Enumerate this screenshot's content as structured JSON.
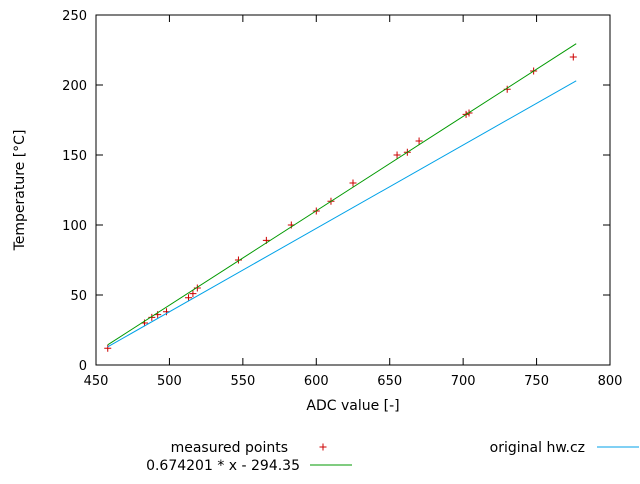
{
  "figure": {
    "background": "#ffffff",
    "axis_color": "#000000"
  },
  "chart_data": {
    "type": "scatter",
    "title": "",
    "xlabel": "ADC value [-]",
    "ylabel": "Temperature [°C]",
    "xlim": [
      450,
      800
    ],
    "ylim": [
      0,
      250
    ],
    "xticks": [
      450,
      500,
      550,
      600,
      650,
      700,
      750,
      800
    ],
    "yticks": [
      0,
      50,
      100,
      150,
      200,
      250
    ],
    "grid": false,
    "legend_position": "below-plot",
    "fit": {
      "slope": 0.674201,
      "intercept": -294.35,
      "equation": "0.674201 * x - 294.35"
    },
    "series": [
      {
        "name": "measured points",
        "type": "points",
        "marker": "plus",
        "color": "#cc0000",
        "points": [
          [
            458,
            12
          ],
          [
            483,
            30
          ],
          [
            488,
            34
          ],
          [
            492,
            36
          ],
          [
            498,
            38
          ],
          [
            513,
            48
          ],
          [
            516,
            51
          ],
          [
            519,
            55
          ],
          [
            547,
            75
          ],
          [
            566,
            89
          ],
          [
            583,
            100
          ],
          [
            600,
            110
          ],
          [
            610,
            117
          ],
          [
            625,
            130
          ],
          [
            655,
            150
          ],
          [
            662,
            152
          ],
          [
            670,
            160
          ],
          [
            702,
            179
          ],
          [
            704,
            180
          ],
          [
            730,
            197
          ],
          [
            748,
            210
          ],
          [
            775,
            220
          ]
        ]
      },
      {
        "name": "0.674201 * x - 294.35",
        "type": "line",
        "color": "#009900",
        "points": [
          [
            458,
            14.4
          ],
          [
            777,
            229.5
          ]
        ]
      },
      {
        "name": "original hw.cz",
        "type": "line",
        "color": "#00a2e8",
        "points": [
          [
            458,
            13
          ],
          [
            777,
            203
          ]
        ]
      }
    ]
  }
}
